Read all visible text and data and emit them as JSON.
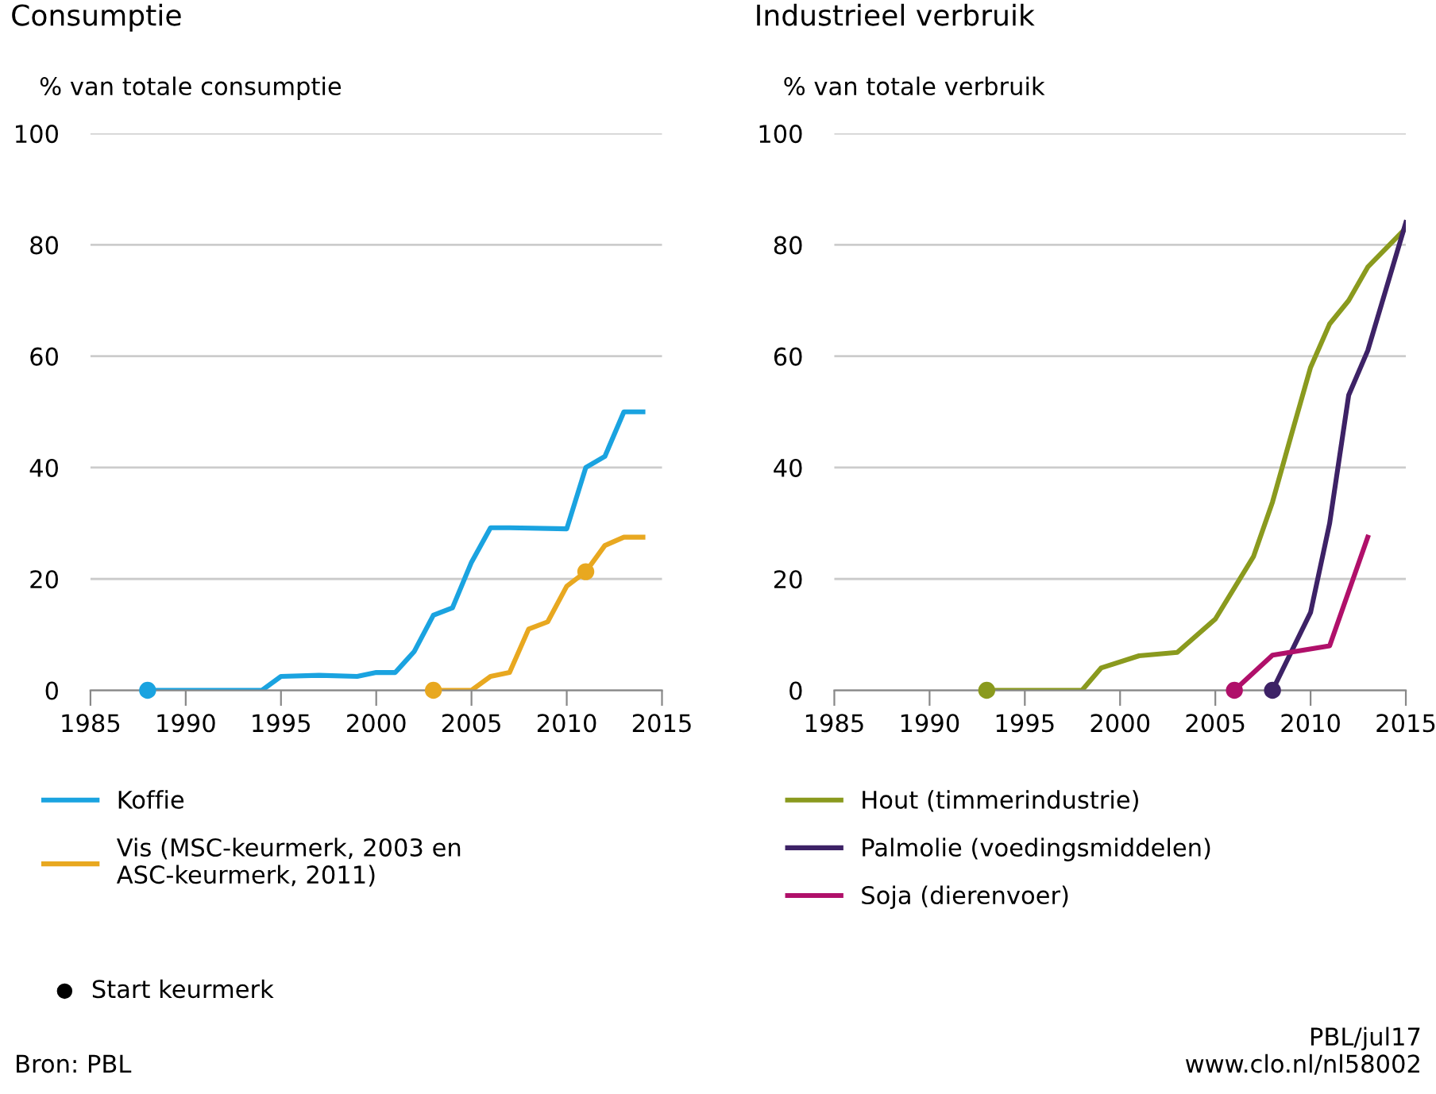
{
  "chart_data": [
    {
      "type": "line",
      "title": "Consumptie",
      "ylabel": "% van totale consumptie",
      "xlim": [
        1985,
        2015
      ],
      "xticks": [
        1985,
        1990,
        1995,
        2000,
        2005,
        2010,
        2015
      ],
      "ylim": [
        0,
        100
      ],
      "yticks": [
        0,
        20,
        40,
        60,
        80,
        100
      ],
      "grid": "y",
      "legend": "bottom",
      "marker": "none",
      "line_style": "solid",
      "annotations": [
        "Start keurmerk",
        "Bron: PBL"
      ],
      "series": [
        {
          "name": "Koffie",
          "color": "#1aa3e0",
          "x": [
            1988,
            1994,
            1995,
            1997,
            1999,
            2000,
            2001,
            2002,
            2003,
            2004,
            2005,
            2006,
            2007,
            2010,
            2011,
            2012,
            2013,
            2014
          ],
          "values": [
            0,
            0,
            2.5,
            2.7,
            2.5,
            3.2,
            3.2,
            7,
            13.5,
            14.8,
            23,
            29.2,
            29.2,
            29,
            40,
            42,
            50,
            50
          ]
        },
        {
          "name": "Vis (MSC-keurmerk, 2003 en\nASC-keurmerk, 2011)",
          "color": "#e8a820",
          "x": [
            2003,
            2005,
            2006,
            2007,
            2008,
            2009,
            2010,
            2011,
            2012,
            2013,
            2014
          ],
          "values": [
            0,
            0,
            2.5,
            3.2,
            11,
            12.3,
            18.7,
            21.3,
            26,
            27.5,
            27.5
          ]
        },
        {
          "type": "scatter",
          "marker": "circle",
          "color": "#000000",
          "colors": [
            "#1aa3e0",
            "#e8a820",
            "#e8a820"
          ],
          "x": [
            1988,
            2003,
            2011
          ],
          "values": [
            0,
            0,
            21.3
          ]
        }
      ]
    },
    {
      "type": "line",
      "title": "Industrieel verbruik",
      "ylabel": "% van totale verbruik",
      "xlim": [
        1985,
        2015
      ],
      "xticks": [
        1985,
        1990,
        1995,
        2000,
        2005,
        2010,
        2015
      ],
      "ylim": [
        0,
        100
      ],
      "yticks": [
        0,
        20,
        40,
        60,
        80,
        100
      ],
      "grid": "y",
      "legend": "bottom",
      "marker": "none",
      "line_style": "solid",
      "annotations": [
        "PBL/jul17\nwww.clo.nl/nl58002"
      ],
      "series": [
        {
          "name": "Hout (timmerindustrie)",
          "color": "#8a9a1e",
          "x": [
            1993,
            1998,
            1999,
            2001,
            2003,
            2005,
            2007,
            2008,
            2009,
            2010,
            2011,
            2012,
            2013,
            2015
          ],
          "values": [
            0,
            0,
            4,
            6.2,
            6.8,
            12.8,
            24,
            33.8,
            46,
            58,
            65.8,
            70,
            76,
            83
          ]
        },
        {
          "name": "Palmolie (voedingsmiddelen)",
          "color": "#3d2266",
          "x": [
            2008,
            2010,
            2011,
            2012,
            2013,
            2015
          ],
          "values": [
            0,
            14,
            30,
            53,
            61,
            84
          ]
        },
        {
          "name": "Soja (dierenvoer)",
          "color": "#b0106a",
          "x": [
            2006,
            2008,
            2011,
            2013
          ],
          "values": [
            0,
            6.3,
            8,
            27.5
          ]
        },
        {
          "type": "scatter",
          "marker": "circle",
          "color": "#000000",
          "colors": [
            "#8a9a1e",
            "#b0106a",
            "#3d2266"
          ],
          "x": [
            1993,
            2006,
            2008
          ],
          "values": [
            0,
            0,
            0
          ]
        }
      ]
    }
  ]
}
